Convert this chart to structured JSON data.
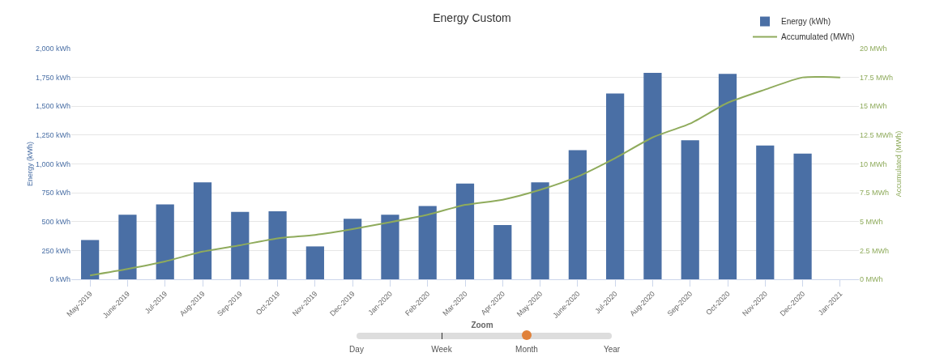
{
  "chart_data": {
    "type": "bar",
    "title": "Energy Custom",
    "ylabel": "Energy (kWh)",
    "y2label": "Accumulated (MWh)",
    "categories": [
      "May-2019",
      "June-2019",
      "Jul-2019",
      "Aug-2019",
      "Sep-2019",
      "Oct-2019",
      "Nov-2019",
      "Dec-2019",
      "Jan-2020",
      "Feb-2020",
      "Mar-2020",
      "Apr-2020",
      "May-2020",
      "June-2020",
      "Jul-2020",
      "Aug-2020",
      "Sep-2020",
      "Oct-2020",
      "Nov-2020",
      "Dec-2020",
      "Jan-2021"
    ],
    "series": [
      {
        "name": "Energy (kWh)",
        "color": "#4a6fa5",
        "values": [
          340,
          560,
          650,
          840,
          585,
          590,
          285,
          525,
          560,
          635,
          830,
          470,
          840,
          1120,
          1610,
          1790,
          1205,
          1780,
          1160,
          1090,
          null
        ]
      },
      {
        "name": "Accumulated (MWh)",
        "type": "line",
        "axis": "y2",
        "color": "#8fab5c",
        "values": [
          0.34,
          0.9,
          1.55,
          2.4,
          2.95,
          3.55,
          3.85,
          4.35,
          4.95,
          5.6,
          6.45,
          6.9,
          7.75,
          8.9,
          10.5,
          12.3,
          13.5,
          15.3,
          16.45,
          17.5,
          17.5
        ]
      }
    ],
    "ylim": [
      0,
      2000
    ],
    "yticks": [
      {
        "value": 0,
        "label": "0 kWh"
      },
      {
        "value": 250,
        "label": "250 kWh"
      },
      {
        "value": 500,
        "label": "500 kWh"
      },
      {
        "value": 750,
        "label": "750 kWh"
      },
      {
        "value": 1000,
        "label": "1,000 kWh"
      },
      {
        "value": 1250,
        "label": "1,250 kWh"
      },
      {
        "value": 1500,
        "label": "1,500 kWh"
      },
      {
        "value": 1750,
        "label": "1,750 kWh"
      },
      {
        "value": 2000,
        "label": "2,000 kWh"
      }
    ],
    "y2lim": [
      0,
      20
    ],
    "y2ticks": [
      {
        "value": 0,
        "label": "0 MWh"
      },
      {
        "value": 2.5,
        "label": "2.5 MWh"
      },
      {
        "value": 5,
        "label": "5 MWh"
      },
      {
        "value": 7.5,
        "label": "7.5 MWh"
      },
      {
        "value": 10,
        "label": "10 MWh"
      },
      {
        "value": 12.5,
        "label": "12.5 MWh"
      },
      {
        "value": 15,
        "label": "15 MWh"
      },
      {
        "value": 17.5,
        "label": "17.5 MWh"
      },
      {
        "value": 20,
        "label": "20 MWh"
      }
    ],
    "grid": "y",
    "legend": "top right",
    "marker": "none",
    "line_style": "solid",
    "annotations": [
      "Zoom",
      "Day",
      "Week",
      "Month",
      "Year"
    ]
  }
}
